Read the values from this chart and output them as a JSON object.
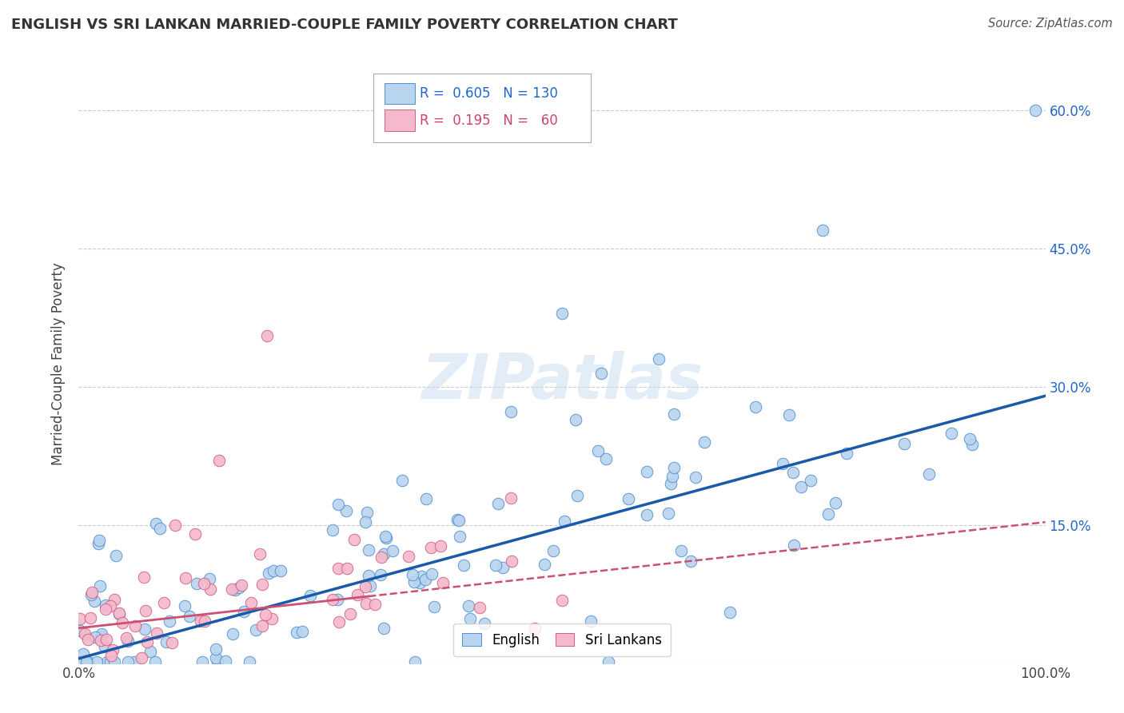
{
  "title": "ENGLISH VS SRI LANKAN MARRIED-COUPLE FAMILY POVERTY CORRELATION CHART",
  "source": "Source: ZipAtlas.com",
  "ylabel": "Married-Couple Family Poverty",
  "background_color": "#ffffff",
  "grid_color": "#cccccc",
  "english_color": "#b8d4ee",
  "english_edge_color": "#5090d0",
  "english_line_color": "#1a5aaa",
  "srilanka_color": "#f5b8cc",
  "srilanka_edge_color": "#d06080",
  "srilanka_line_color": "#cc5070",
  "english_R": 0.605,
  "english_N": 130,
  "srilanka_R": 0.195,
  "srilanka_N": 60,
  "watermark": "ZIPatlas",
  "legend_color_blue": "#2266cc",
  "legend_color_pink": "#cc4466",
  "yticks": [
    0.0,
    0.15,
    0.3,
    0.45,
    0.6
  ],
  "right_ytick_labels": [
    "15.0%",
    "30.0%",
    "45.0%",
    "60.0%"
  ],
  "xlim": [
    0.0,
    1.0
  ],
  "ylim": [
    0.0,
    0.65
  ]
}
